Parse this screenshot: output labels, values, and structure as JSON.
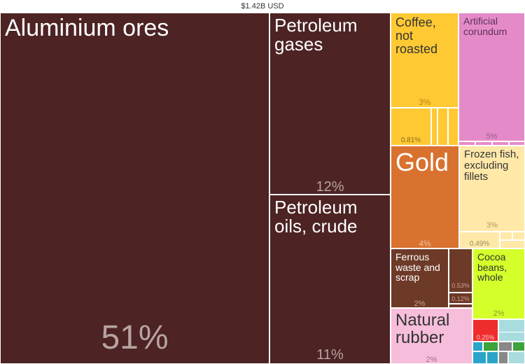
{
  "total_label": "$1.42B USD",
  "chart_data": {
    "type": "treemap",
    "title": "$1.42B USD",
    "items": [
      {
        "label": "Aluminium ores",
        "share_text": "51%",
        "share": 51,
        "color": "#4d2323"
      },
      {
        "label": "Petroleum gases",
        "share_text": "12%",
        "share": 12,
        "color": "#4d2323"
      },
      {
        "label": "Petroleum oils, crude",
        "share_text": "11%",
        "share": 11,
        "color": "#4d2323"
      },
      {
        "label": "Coffee, not roasted",
        "share_text": "3%",
        "share": 3,
        "color": "#ffc934"
      },
      {
        "label": "",
        "share_text": "0.81%",
        "share": 0.81,
        "color": "#ffc934"
      },
      {
        "label": "Artificial corundum",
        "share_text": "5%",
        "share": 5,
        "color": "#e58ac9"
      },
      {
        "label": "Gold",
        "share_text": "4%",
        "share": 4,
        "color": "#d9712f"
      },
      {
        "label": "Frozen fish, excluding fillets",
        "share_text": "3%",
        "share": 3,
        "color": "#ffe8a8"
      },
      {
        "label": "",
        "share_text": "0.49%",
        "share": 0.49,
        "color": "#ffe8a8"
      },
      {
        "label": "Ferrous waste and scrap",
        "share_text": "2%",
        "share": 2,
        "color": "#6e3a28"
      },
      {
        "label": "",
        "share_text": "0.53%",
        "share": 0.53,
        "color": "#6e3a28"
      },
      {
        "label": "",
        "share_text": "0.12%",
        "share": 0.12,
        "color": "#6e3a28"
      },
      {
        "label": "Cocoa beans, whole",
        "share_text": "2%",
        "share": 2,
        "color": "#d4ff2a"
      },
      {
        "label": "Natural rubber",
        "share_text": "2%",
        "share": 2,
        "color": "#f7bedb"
      },
      {
        "label": "",
        "share_text": "0.25%",
        "share": 0.25,
        "color": "#ee2c2c"
      },
      {
        "label": "",
        "share_text": "0.2%",
        "share": 0.2,
        "color": "#a8dcdf"
      }
    ]
  },
  "filler_colors": [
    "#4d2323",
    "#ffc934",
    "#e58ac9",
    "#ffe8a8",
    "#6e3a28",
    "#d4ff2a",
    "#2aa5c9",
    "#3ca43c",
    "#a8dcdf",
    "#ee2c2c",
    "#888888"
  ]
}
